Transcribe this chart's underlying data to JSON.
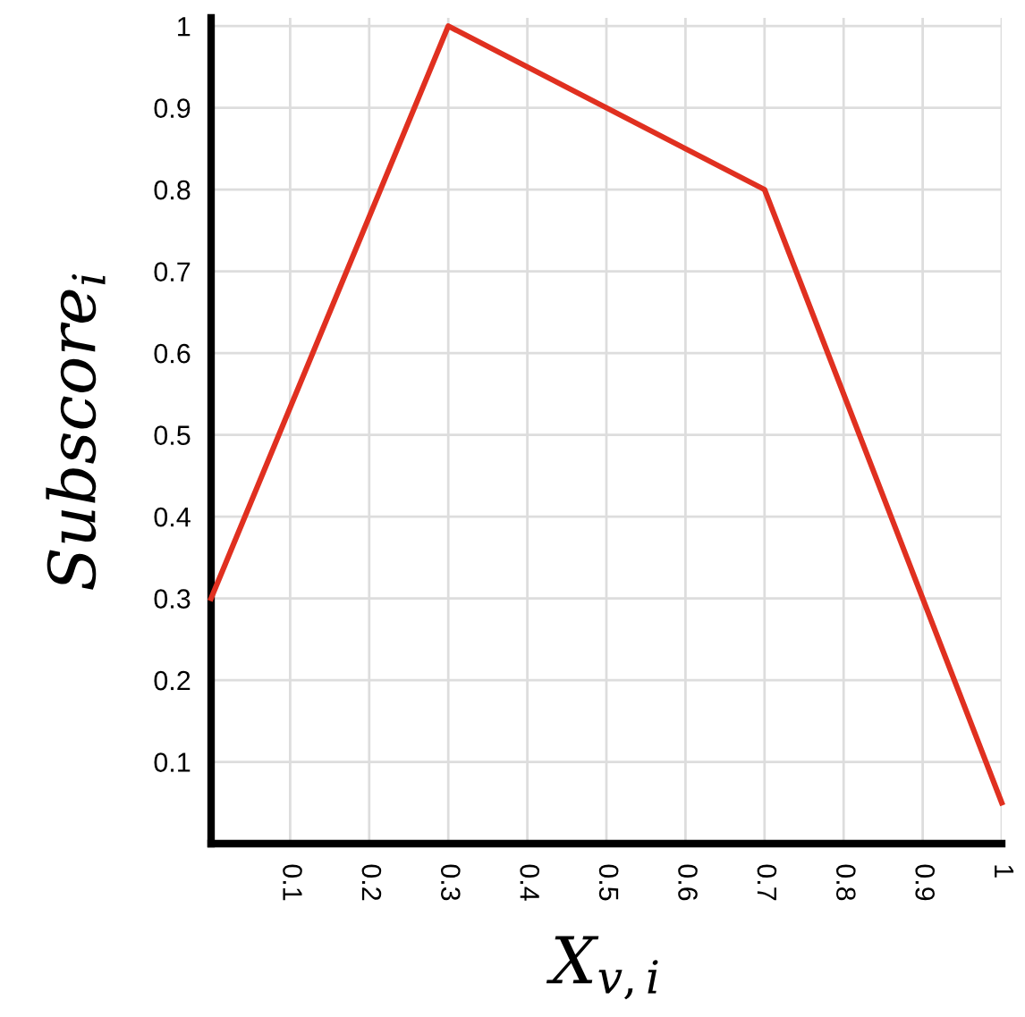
{
  "chart_data": {
    "type": "line",
    "xlabel": "X$_{v,i}$",
    "ylabel": "Subscore$_{i}$",
    "x": [
      0,
      0.3,
      0.7,
      1.0
    ],
    "series": [
      {
        "color": "#e03020",
        "values": [
          0.3,
          1.0,
          0.8,
          0.05
        ]
      }
    ],
    "xlim": [
      0,
      1
    ],
    "ylim": [
      0,
      1.01
    ],
    "xticks": [
      0.1,
      0.2,
      0.3,
      0.4,
      0.5,
      0.6,
      0.7,
      0.8,
      0.9,
      1
    ],
    "yticks": [
      0.1,
      0.2,
      0.3,
      0.4,
      0.5,
      0.6,
      0.7,
      0.8,
      0.9,
      1
    ],
    "grid": true,
    "marker": "none",
    "line_style": "solid",
    "legend": false
  }
}
